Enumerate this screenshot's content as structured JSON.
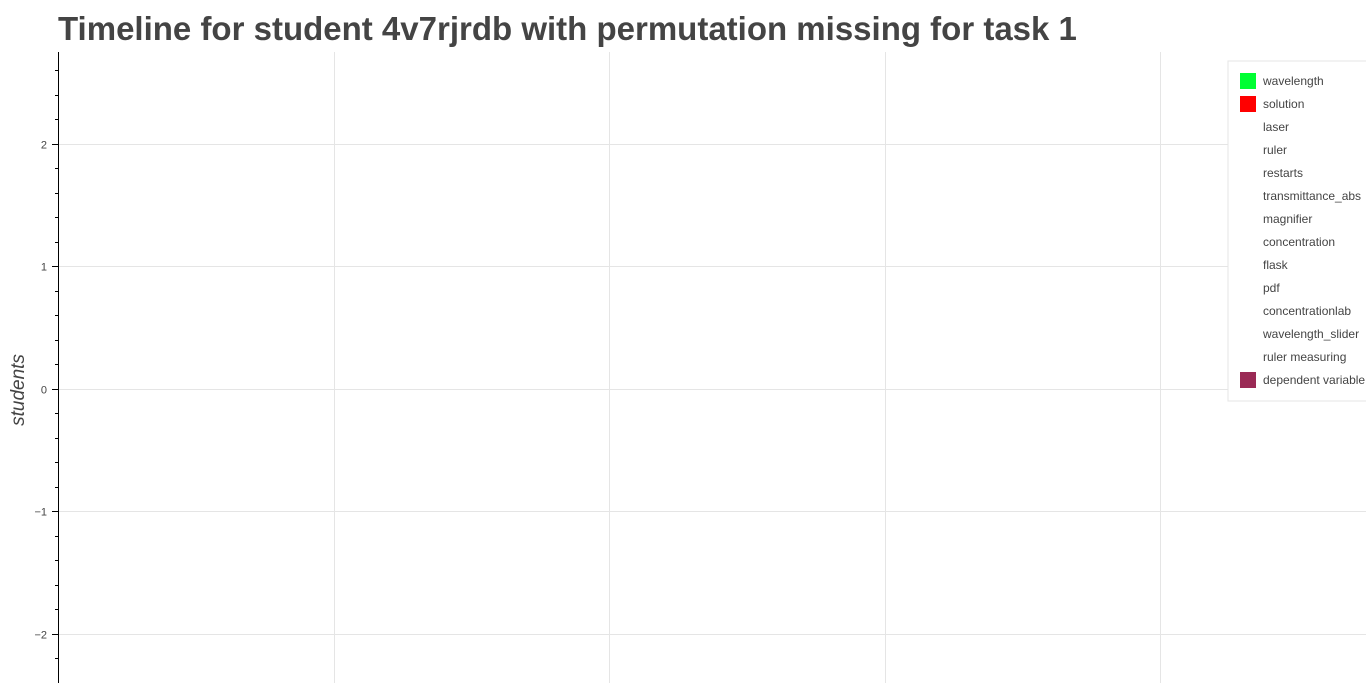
{
  "chart_data": {
    "type": "bar",
    "title": "Timeline for student 4v7rjrdb with permutation missing for task 1",
    "ylabel": "students",
    "xlabel": "",
    "ylim": [
      -2.4,
      2.75
    ],
    "yticks": [
      -2,
      -1,
      0,
      1,
      2
    ],
    "ytick_labels": [
      "−2",
      "−1",
      "0",
      "1",
      "2"
    ],
    "xgrid": [
      0.2,
      0.4,
      0.6,
      0.8
    ],
    "grid": true,
    "legend_position": "top-right",
    "series": [
      {
        "name": "wavelength",
        "color": "#00ff33",
        "values": []
      },
      {
        "name": "solution",
        "color": "#ff0000",
        "values": []
      },
      {
        "name": "laser",
        "color": "none",
        "values": []
      },
      {
        "name": "ruler",
        "color": "none",
        "values": []
      },
      {
        "name": "restarts",
        "color": "none",
        "values": []
      },
      {
        "name": "transmittance_abs",
        "color": "none",
        "values": []
      },
      {
        "name": "magnifier",
        "color": "none",
        "values": []
      },
      {
        "name": "concentration",
        "color": "none",
        "values": []
      },
      {
        "name": "flask",
        "color": "none",
        "values": []
      },
      {
        "name": "pdf",
        "color": "none",
        "values": []
      },
      {
        "name": "concentrationlab",
        "color": "none",
        "values": []
      },
      {
        "name": "wavelength_slider",
        "color": "none",
        "values": []
      },
      {
        "name": "ruler measuring",
        "color": "none",
        "values": []
      },
      {
        "name": "dependent variable",
        "color": "#9a2a55",
        "values": []
      }
    ]
  }
}
